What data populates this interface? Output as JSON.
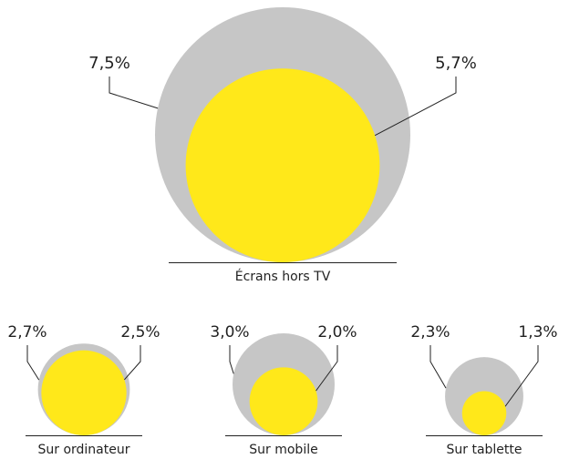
{
  "chart_data": {
    "type": "bubble",
    "categories": [
      "Écrans hors TV",
      "Sur ordinateur",
      "Sur mobile",
      "Sur tablette"
    ],
    "series": [
      {
        "color": "#c6c6c6",
        "values": [
          7.5,
          2.7,
          3.0,
          2.3
        ],
        "value_labels": [
          "7,5%",
          "2,7%",
          "3,0%",
          "2,3%"
        ]
      },
      {
        "color": "#ffe81a",
        "values": [
          5.7,
          2.5,
          2.0,
          1.3
        ],
        "value_labels": [
          "5,7%",
          "2,5%",
          "2,0%",
          "1,3%"
        ]
      }
    ]
  }
}
